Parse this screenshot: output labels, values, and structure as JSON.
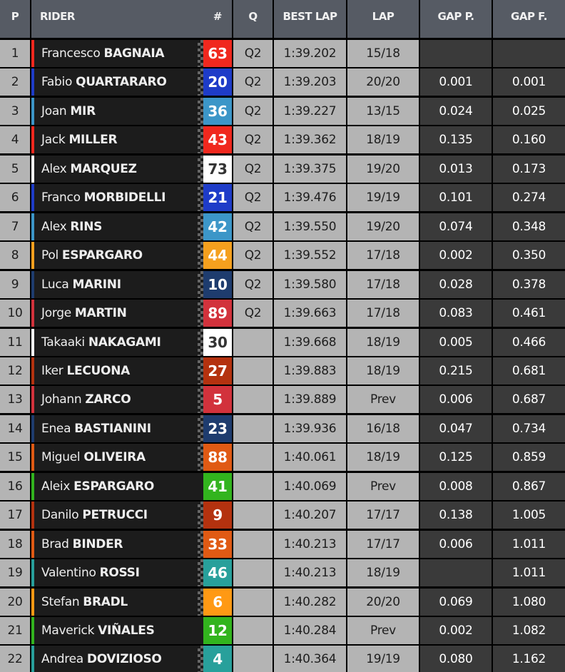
{
  "headers": {
    "p": "P",
    "rider": "RIDER",
    "num": "#",
    "q": "Q",
    "best": "BEST LAP",
    "lap": "LAP",
    "gap_p": "GAP P.",
    "gap_f": "GAP F."
  },
  "rows": [
    {
      "p": "1",
      "first": "Francesco",
      "last": "BAGNAIA",
      "num": "63",
      "color": "#f0281e",
      "text": "#fff",
      "q": "Q2",
      "best": "1:39.202",
      "lap": "15/18",
      "gap_p": "",
      "gap_f": "",
      "flag": true
    },
    {
      "p": "2",
      "first": "Fabio",
      "last": "QUARTARARO",
      "num": "20",
      "color": "#1e3cc8",
      "text": "#fff",
      "q": "Q2",
      "best": "1:39.203",
      "lap": "20/20",
      "gap_p": "0.001",
      "gap_f": "0.001",
      "flag": true
    },
    {
      "p": "3",
      "first": "Joan",
      "last": "MIR",
      "num": "36",
      "color": "#3c96c8",
      "text": "#fff",
      "q": "Q2",
      "best": "1:39.227",
      "lap": "13/15",
      "gap_p": "0.024",
      "gap_f": "0.025",
      "flag": true
    },
    {
      "p": "4",
      "first": "Jack",
      "last": "MILLER",
      "num": "43",
      "color": "#f0281e",
      "text": "#fff",
      "q": "Q2",
      "best": "1:39.362",
      "lap": "18/19",
      "gap_p": "0.135",
      "gap_f": "0.160",
      "flag": true
    },
    {
      "p": "5",
      "first": "Alex",
      "last": "MARQUEZ",
      "num": "73",
      "color": "#ffffff",
      "text": "#333",
      "q": "Q2",
      "best": "1:39.375",
      "lap": "19/20",
      "gap_p": "0.013",
      "gap_f": "0.173",
      "flag": true
    },
    {
      "p": "6",
      "first": "Franco",
      "last": "MORBIDELLI",
      "num": "21",
      "color": "#1e3cc8",
      "text": "#fff",
      "q": "Q2",
      "best": "1:39.476",
      "lap": "19/19",
      "gap_p": "0.101",
      "gap_f": "0.274",
      "flag": true
    },
    {
      "p": "7",
      "first": "Alex",
      "last": "RINS",
      "num": "42",
      "color": "#3c96c8",
      "text": "#fff",
      "q": "Q2",
      "best": "1:39.550",
      "lap": "19/20",
      "gap_p": "0.074",
      "gap_f": "0.348",
      "flag": true
    },
    {
      "p": "8",
      "first": "Pol",
      "last": "ESPARGARO",
      "num": "44",
      "color": "#f5a01e",
      "text": "#fff",
      "q": "Q2",
      "best": "1:39.552",
      "lap": "17/18",
      "gap_p": "0.002",
      "gap_f": "0.350",
      "flag": true
    },
    {
      "p": "9",
      "first": "Luca",
      "last": "MARINI",
      "num": "10",
      "color": "#1e3c6e",
      "text": "#fff",
      "q": "Q2",
      "best": "1:39.580",
      "lap": "17/18",
      "gap_p": "0.028",
      "gap_f": "0.378",
      "flag": true
    },
    {
      "p": "10",
      "first": "Jorge",
      "last": "MARTIN",
      "num": "89",
      "color": "#d2323c",
      "text": "#fff",
      "q": "Q2",
      "best": "1:39.663",
      "lap": "17/18",
      "gap_p": "0.083",
      "gap_f": "0.461",
      "flag": true
    },
    {
      "p": "11",
      "first": "Takaaki",
      "last": "NAKAGAMI",
      "num": "30",
      "color": "#ffffff",
      "text": "#333",
      "q": "",
      "best": "1:39.668",
      "lap": "18/19",
      "gap_p": "0.005",
      "gap_f": "0.466",
      "flag": true
    },
    {
      "p": "12",
      "first": "Iker",
      "last": "LECUONA",
      "num": "27",
      "color": "#b4320f",
      "text": "#fff",
      "q": "",
      "best": "1:39.883",
      "lap": "18/19",
      "gap_p": "0.215",
      "gap_f": "0.681",
      "flag": true
    },
    {
      "p": "13",
      "first": "Johann",
      "last": "ZARCO",
      "num": "5",
      "color": "#d2323c",
      "text": "#fff",
      "q": "",
      "best": "1:39.889",
      "lap": "Prev",
      "gap_p": "0.006",
      "gap_f": "0.687",
      "flag": true
    },
    {
      "p": "14",
      "first": "Enea",
      "last": "BASTIANINI",
      "num": "23",
      "color": "#1e3c6e",
      "text": "#fff",
      "q": "",
      "best": "1:39.936",
      "lap": "16/18",
      "gap_p": "0.047",
      "gap_f": "0.734",
      "flag": true
    },
    {
      "p": "15",
      "first": "Miguel",
      "last": "OLIVEIRA",
      "num": "88",
      "color": "#e05a14",
      "text": "#fff",
      "q": "",
      "best": "1:40.061",
      "lap": "18/19",
      "gap_p": "0.125",
      "gap_f": "0.859",
      "flag": true
    },
    {
      "p": "16",
      "first": "Aleix",
      "last": "ESPARGARO",
      "num": "41",
      "color": "#32b41e",
      "text": "#fff",
      "q": "",
      "best": "1:40.069",
      "lap": "Prev",
      "gap_p": "0.008",
      "gap_f": "0.867",
      "flag": false
    },
    {
      "p": "17",
      "first": "Danilo",
      "last": "PETRUCCI",
      "num": "9",
      "color": "#b4320f",
      "text": "#fff",
      "q": "",
      "best": "1:40.207",
      "lap": "17/17",
      "gap_p": "0.138",
      "gap_f": "1.005",
      "flag": true
    },
    {
      "p": "18",
      "first": "Brad",
      "last": "BINDER",
      "num": "33",
      "color": "#e05a14",
      "text": "#fff",
      "q": "",
      "best": "1:40.213",
      "lap": "17/17",
      "gap_p": "0.006",
      "gap_f": "1.011",
      "flag": true
    },
    {
      "p": "19",
      "first": "Valentino",
      "last": "ROSSI",
      "num": "46",
      "color": "#28a09b",
      "text": "#fff",
      "q": "",
      "best": "1:40.213",
      "lap": "18/19",
      "gap_p": "",
      "gap_f": "1.011",
      "flag": true
    },
    {
      "p": "20",
      "first": "Stefan",
      "last": "BRADL",
      "num": "6",
      "color": "#ff9914",
      "text": "#fff",
      "q": "",
      "best": "1:40.282",
      "lap": "20/20",
      "gap_p": "0.069",
      "gap_f": "1.080",
      "flag": true
    },
    {
      "p": "21",
      "first": "Maverick",
      "last": "VIÑALES",
      "num": "12",
      "color": "#32b41e",
      "text": "#fff",
      "q": "",
      "best": "1:40.284",
      "lap": "Prev",
      "gap_p": "0.002",
      "gap_f": "1.082",
      "flag": false
    },
    {
      "p": "22",
      "first": "Andrea",
      "last": "DOVIZIOSO",
      "num": "4",
      "color": "#28a09b",
      "text": "#fff",
      "q": "",
      "best": "1:40.364",
      "lap": "19/19",
      "gap_p": "0.080",
      "gap_f": "1.162",
      "flag": true
    }
  ]
}
